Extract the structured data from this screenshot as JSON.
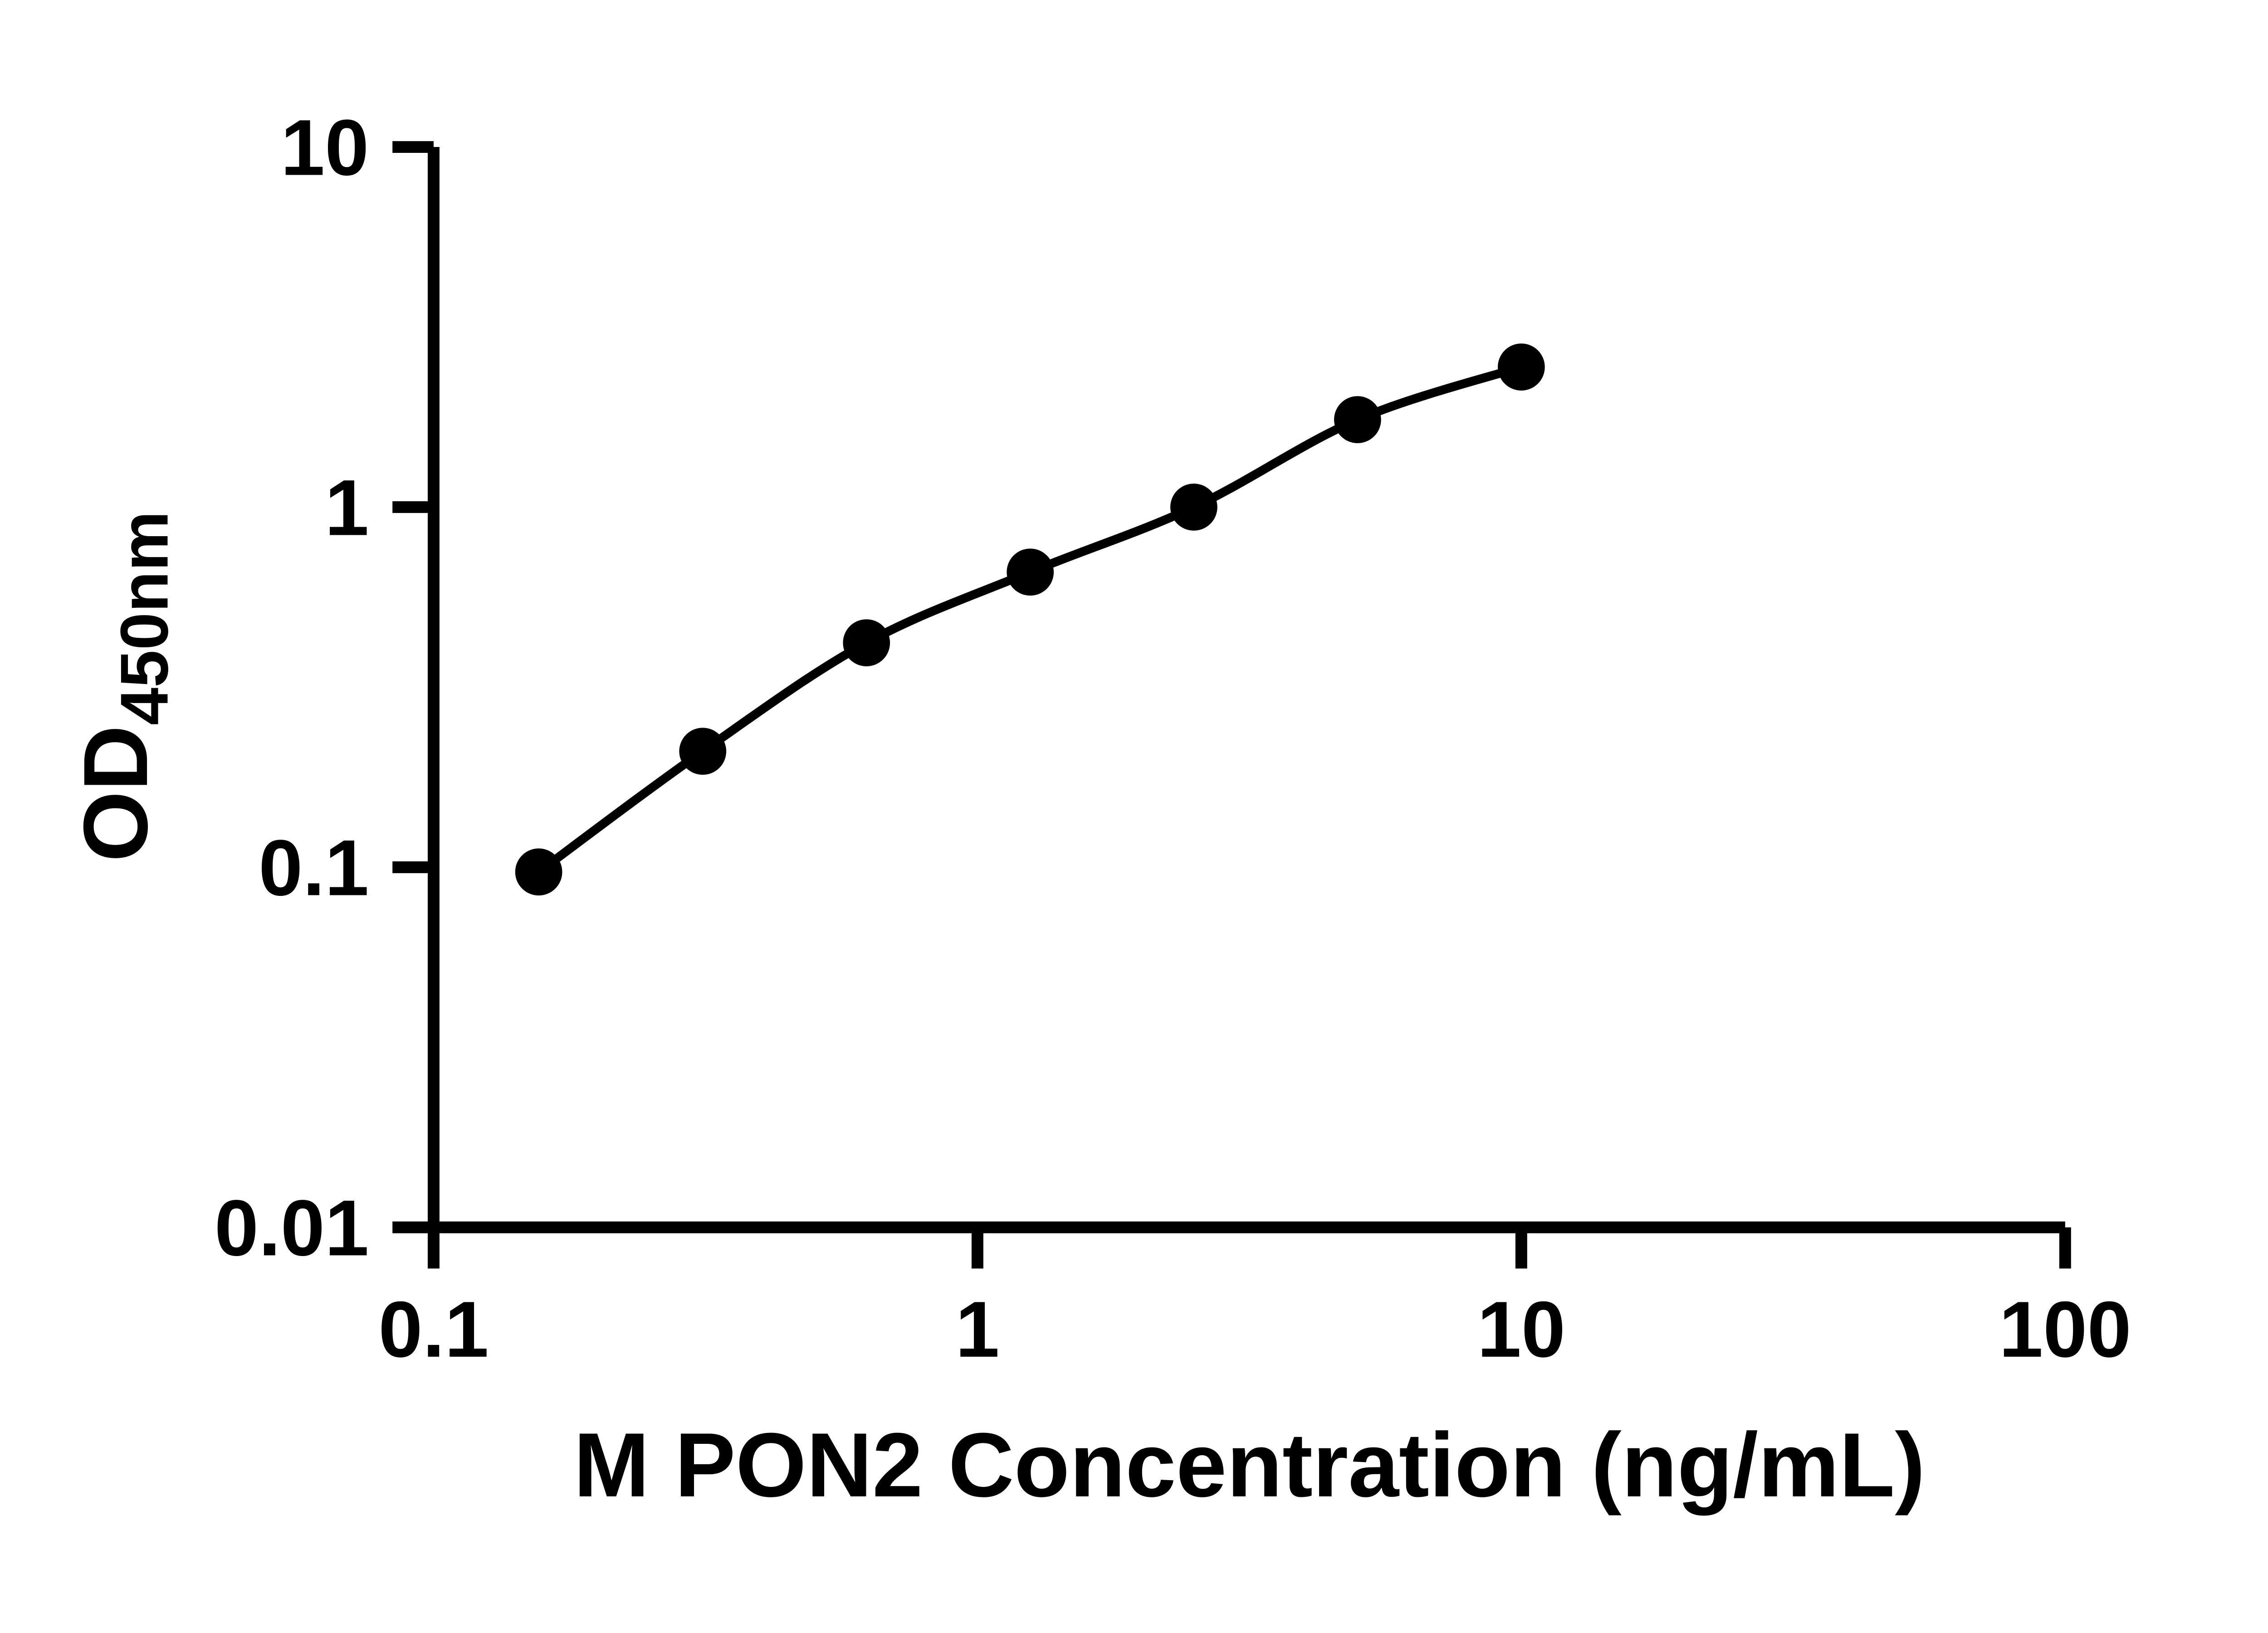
{
  "figure": {
    "background": "#ffffff",
    "axis_color": "#000000",
    "point_color": "#000000",
    "curve_color": "#000000"
  },
  "chart_data": {
    "type": "scatter",
    "line": "smooth-fit",
    "marker": "filled-circle",
    "x": [
      0.156,
      0.3125,
      0.625,
      1.25,
      2.5,
      5,
      10
    ],
    "y": [
      0.097,
      0.21,
      0.42,
      0.66,
      1.0,
      1.75,
      2.45
    ],
    "title": "",
    "xlabel": "M PON2 Concentration (ng/mL)",
    "ylabel_main": "OD",
    "ylabel_sub": "450nm",
    "xscale": "log",
    "yscale": "log",
    "xlim": [
      0.1,
      100
    ],
    "ylim": [
      0.01,
      10
    ],
    "x_ticks": [
      0.1,
      1,
      10,
      100
    ],
    "x_tick_labels": [
      "0.1",
      "1",
      "10",
      "100"
    ],
    "y_ticks": [
      0.01,
      0.1,
      1,
      10
    ],
    "y_tick_labels": [
      "0.01",
      "0.1",
      "1",
      "10"
    ],
    "grid": false,
    "legend": null
  }
}
